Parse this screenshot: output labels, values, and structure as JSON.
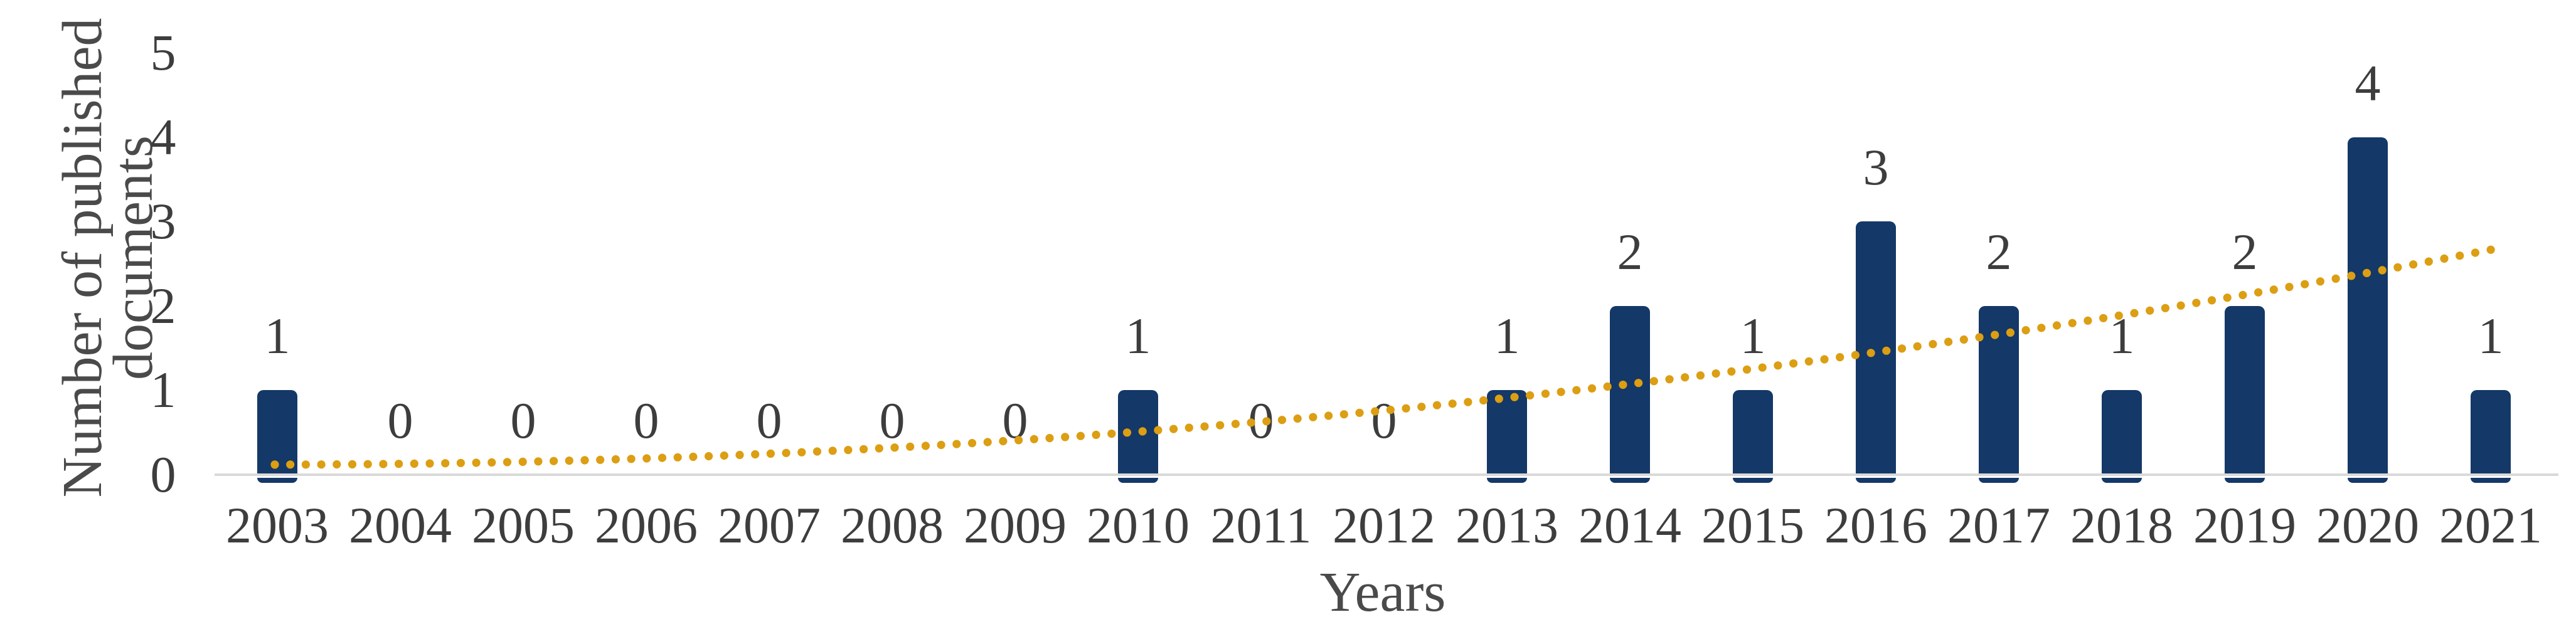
{
  "figure": {
    "background_color": "#FFFFFF"
  },
  "chart_data": {
    "type": "bar",
    "title": "",
    "xlabel": "Years",
    "ylabel": "Number of published documents",
    "ylabel_lines": [
      "Number of published",
      "documents"
    ],
    "categories": [
      "2003",
      "2004",
      "2005",
      "2006",
      "2007",
      "2008",
      "2009",
      "2010",
      "2011",
      "2012",
      "2013",
      "2014",
      "2015",
      "2016",
      "2017",
      "2018",
      "2019",
      "2020",
      "2021"
    ],
    "values": [
      1,
      0,
      0,
      0,
      0,
      0,
      0,
      1,
      0,
      0,
      1,
      2,
      1,
      3,
      2,
      1,
      2,
      4,
      1
    ],
    "data_labels_shown": true,
    "ylim": [
      0,
      5
    ],
    "yticks": [
      "0",
      "1",
      "2",
      "3",
      "4",
      "5"
    ],
    "grid": "off",
    "legend": "none",
    "bar_color": "#143867",
    "axis_line_color": "#D9D9D9",
    "label_color": "#3D3D3D",
    "axis_title_color": "#4A4A4A",
    "trendline": {
      "style": "dotted",
      "color": "#DC9E12",
      "type": "polynomial",
      "order": 2,
      "coefficients": {
        "a": 0.0078,
        "b": 0.001,
        "c": 0.12
      },
      "x_domain_years": [
        2003,
        2021
      ],
      "approx_values_by_year": {
        "2003": 0.12,
        "2010": 0.51,
        "2016": 1.45,
        "2021": 2.67
      }
    }
  }
}
